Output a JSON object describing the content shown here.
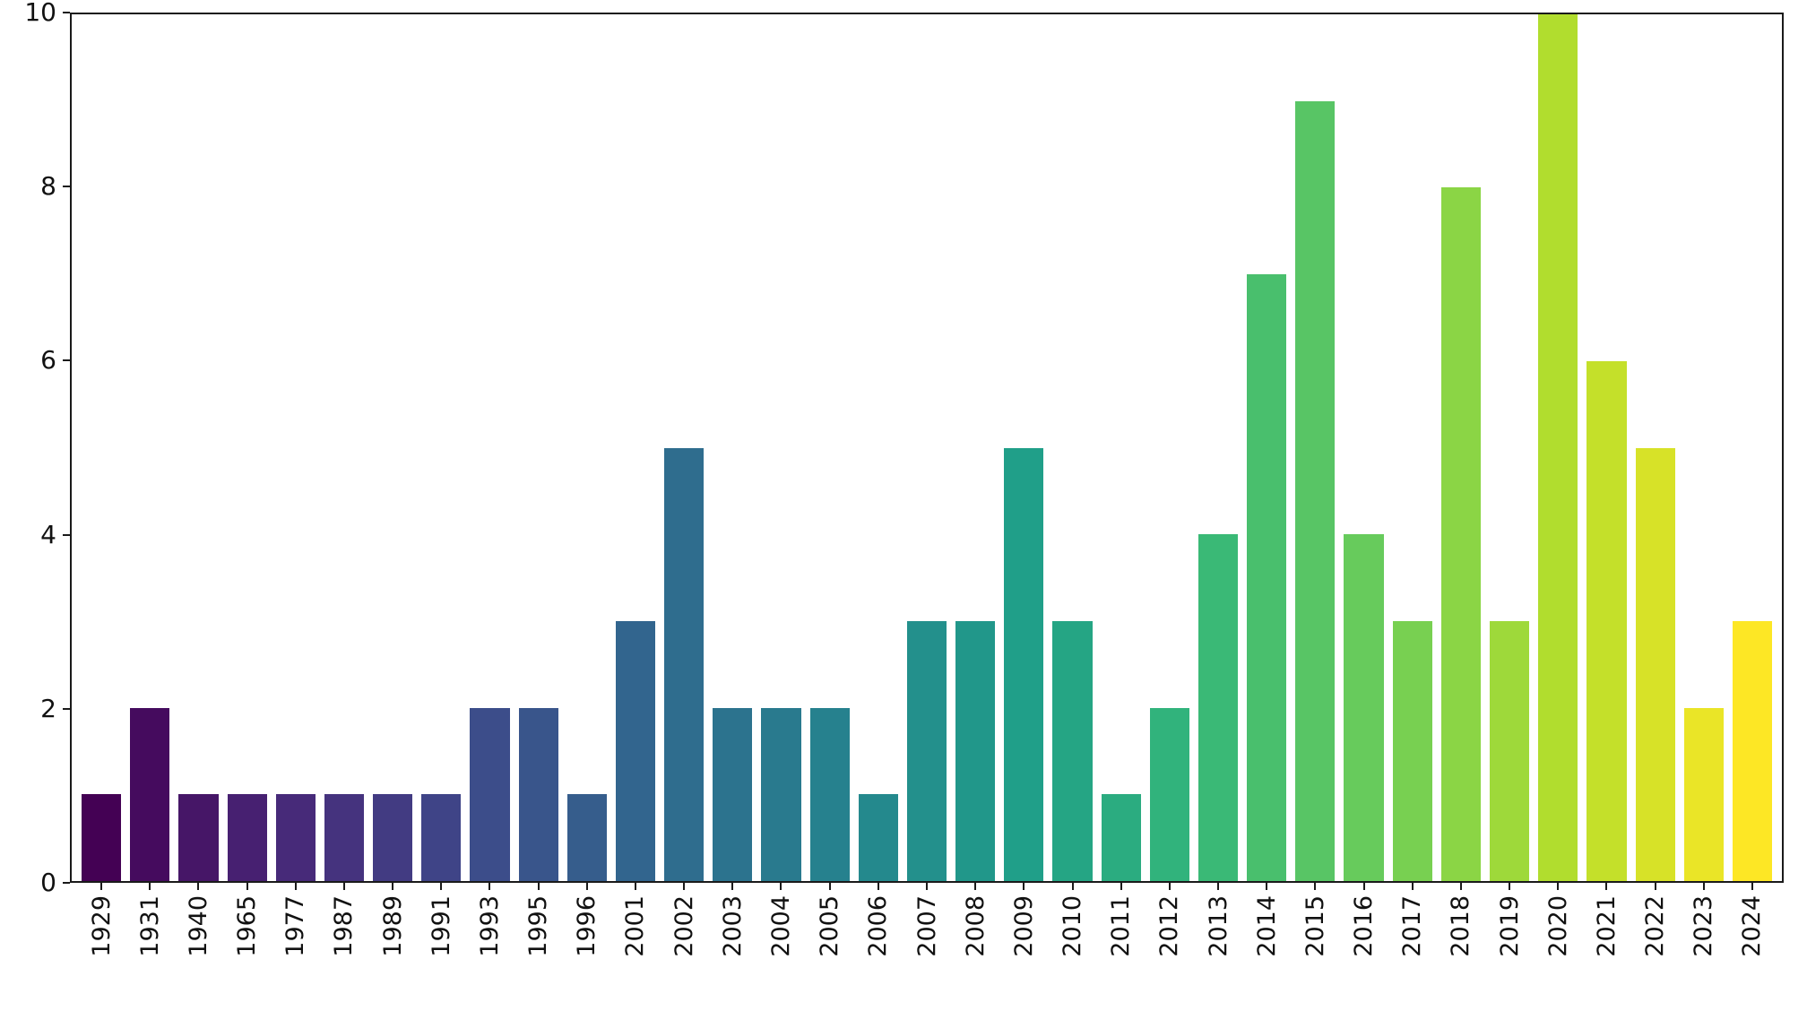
{
  "figure": {
    "background_color": "#ffffff",
    "axes_edge_color": "#1a1a1a",
    "tick_label_color": "#111111"
  },
  "chart_data": {
    "type": "bar",
    "title": "",
    "xlabel": "",
    "ylabel": "",
    "categories": [
      "1929",
      "1931",
      "1940",
      "1965",
      "1977",
      "1987",
      "1989",
      "1991",
      "1993",
      "1995",
      "1996",
      "2001",
      "2002",
      "2003",
      "2004",
      "2005",
      "2006",
      "2007",
      "2008",
      "2009",
      "2010",
      "2011",
      "2012",
      "2013",
      "2014",
      "2015",
      "2016",
      "2017",
      "2018",
      "2019",
      "2020",
      "2021",
      "2022",
      "2023",
      "2024"
    ],
    "values": [
      1,
      2,
      1,
      1,
      1,
      1,
      1,
      1,
      2,
      2,
      1,
      3,
      5,
      2,
      2,
      2,
      1,
      3,
      3,
      5,
      3,
      1,
      2,
      4,
      7,
      9,
      4,
      3,
      8,
      3,
      10,
      6,
      5,
      2,
      3
    ],
    "ylim": [
      0,
      10
    ],
    "yticks": [
      0,
      2,
      4,
      6,
      8,
      10
    ],
    "grid": false,
    "legend": null,
    "x_tick_rotation_deg": 90,
    "bar_colormap_name": "viridis",
    "bar_colormap_anchors": [
      "#440154",
      "#482878",
      "#3e4989",
      "#31688e",
      "#26828e",
      "#1f9e89",
      "#35b779",
      "#6ece58",
      "#b5de2b",
      "#fde725"
    ]
  }
}
